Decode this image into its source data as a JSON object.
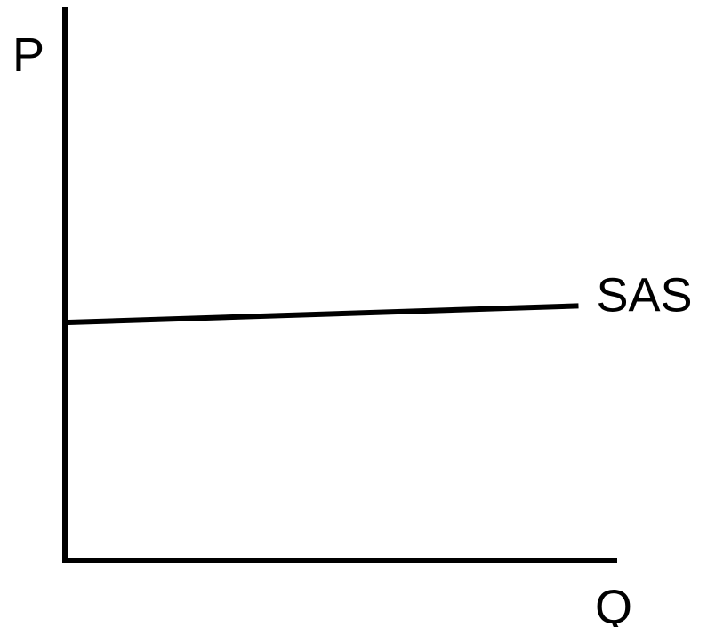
{
  "chart_data": {
    "type": "line",
    "ylabel": "P",
    "xlabel": "Q",
    "xlim": [
      0,
      100
    ],
    "ylim": [
      0,
      100
    ],
    "grid": false,
    "series": [
      {
        "name": "SAS",
        "x": [
          0,
          93
        ],
        "y": [
          43,
          46
        ],
        "color": "#000000"
      }
    ]
  }
}
